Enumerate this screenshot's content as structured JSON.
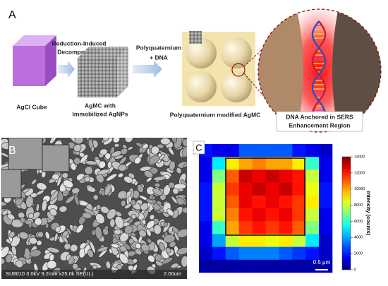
{
  "panel_a": {
    "label": "A",
    "cube_caption": "AgCl Cube",
    "step1": [
      "Reduction-Induced",
      "Decomposition"
    ],
    "agmc_caption": [
      "AgMC with",
      "Immobilized AgNPs"
    ],
    "step2": [
      "Polyquaternium",
      "+ DNA"
    ],
    "modified_caption": "Polyquaternium modified AgMC",
    "zoom_caption": [
      "DNA Anchored in SERS",
      "Enhancement Region"
    ]
  },
  "panel_b": {
    "label": "B",
    "footer": "SU8010 3.0kV 9.2mm x25.0k SE(UL)",
    "scale": "2.00um"
  },
  "chart_data": {
    "type": "heatmap",
    "label": "C",
    "colormap": "jet",
    "z": [
      [
        2000,
        1500,
        1500,
        3000,
        3000,
        3000,
        3000,
        2000,
        1500,
        1000
      ],
      [
        1500,
        5000,
        9000,
        10000,
        10500,
        10000,
        10000,
        9000,
        6000,
        1500
      ],
      [
        1500,
        7000,
        11000,
        13000,
        12500,
        13000,
        12500,
        12000,
        8000,
        1500
      ],
      [
        2000,
        8000,
        11500,
        12500,
        13000,
        12500,
        13000,
        12000,
        8500,
        2000
      ],
      [
        2000,
        8000,
        11000,
        12500,
        12000,
        12500,
        12000,
        11500,
        9000,
        2000
      ],
      [
        2000,
        8000,
        10500,
        12000,
        12500,
        12000,
        12500,
        11500,
        8000,
        1500
      ],
      [
        1500,
        6000,
        10000,
        11500,
        12000,
        11500,
        12000,
        11000,
        7000,
        1500
      ],
      [
        1500,
        4000,
        8000,
        9000,
        9000,
        8500,
        9000,
        8000,
        5000,
        1000
      ],
      [
        1000,
        2000,
        3000,
        3500,
        3500,
        3500,
        3000,
        2500,
        2000,
        1000
      ],
      [
        500,
        500,
        500,
        500,
        500,
        500,
        500,
        500,
        500,
        500
      ]
    ],
    "zlim": [
      0,
      14000
    ],
    "colorbar_ticks": [
      0,
      2000,
      4000,
      6000,
      8000,
      10000,
      12000,
      14000
    ],
    "colorbar_label": "Intensity (counts)",
    "scale_bar": "0.5 μm"
  }
}
